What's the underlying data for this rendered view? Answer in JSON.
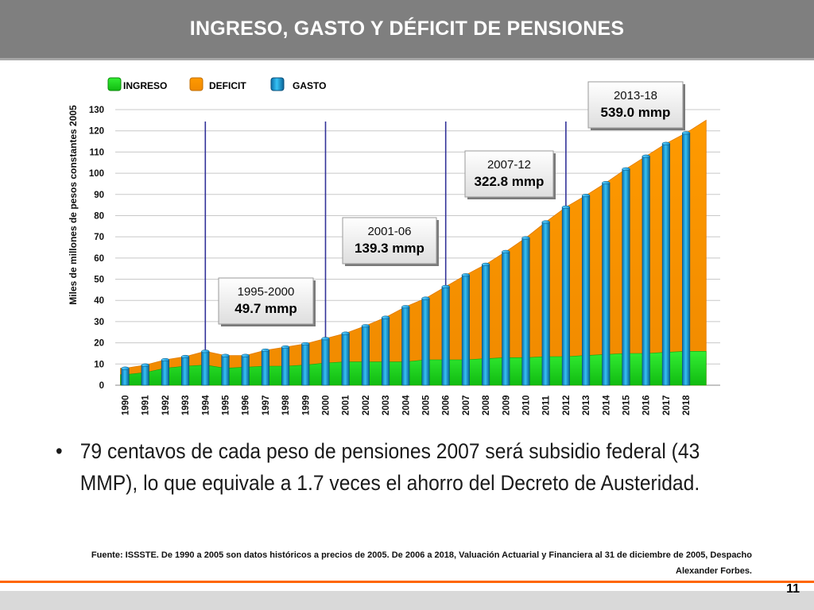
{
  "title": "INGRESO, GASTO Y DÉFICIT DE PENSIONES",
  "bullet": "79 centavos de cada peso de pensiones 2007 será subsidio federal (43 MMP), lo que equivale a 1.7 veces el ahorro del Decreto de Austeridad.",
  "bullet_marker": "•",
  "source": "Fuente: ISSSTE. De 1990 a 2005 son datos históricos a precios de 2005. De 2006 a 2018, Valuación Actuarial y Financiera al 31 de diciembre de 2005, Despacho Alexander Forbes.",
  "page_number": "11",
  "colors": {
    "ingreso": "#22dd22",
    "deficit": "#ff9900",
    "gasto": "#1199dd",
    "divider": "#333399"
  },
  "chart_data": {
    "type": "bar",
    "ylabel": "Miles de millones de pesos constantes 2005",
    "ylim": [
      0,
      130
    ],
    "yticks": [
      0,
      10,
      20,
      30,
      40,
      50,
      60,
      70,
      80,
      90,
      100,
      110,
      120,
      130
    ],
    "categories": [
      "1990",
      "1991",
      "1992",
      "1993",
      "1994",
      "1995",
      "1996",
      "1997",
      "1998",
      "1999",
      "2000",
      "2001",
      "2002",
      "2003",
      "2004",
      "2005",
      "2006",
      "2007",
      "2008",
      "2009",
      "2010",
      "2011",
      "2012",
      "2013",
      "2014",
      "2015",
      "2016",
      "2017",
      "2018"
    ],
    "legend": [
      "INGRESO",
      "DEFICIT",
      "GASTO"
    ],
    "series": [
      {
        "name": "INGRESO",
        "style": "area",
        "values": [
          5,
          6,
          8,
          9,
          9.5,
          8,
          8.5,
          9,
          9,
          9.5,
          10.5,
          11,
          11,
          11,
          11,
          12,
          12,
          12,
          12.5,
          13,
          13,
          13.5,
          13.5,
          14,
          14.5,
          15,
          15,
          15.5,
          16
        ]
      },
      {
        "name": "GASTO",
        "style": "bar",
        "values": [
          8,
          9.5,
          12,
          13.5,
          16,
          14,
          14,
          16.5,
          18,
          19.5,
          22,
          24.5,
          28,
          32,
          37,
          41,
          46.5,
          52,
          57,
          63,
          69.5,
          77,
          84,
          89.5,
          95.5,
          102,
          108,
          114,
          119
        ]
      }
    ],
    "deficit_envelope": [
      8,
      9.5,
      12,
      13.5,
      16,
      14,
      14,
      16.5,
      18,
      19.5,
      22,
      24.5,
      28,
      32,
      37,
      41,
      46.5,
      52,
      57,
      63,
      69.5,
      77,
      84,
      89.5,
      95.5,
      102,
      108,
      114,
      119,
      125
    ],
    "dividers_after": [
      "1994",
      "2000",
      "2006",
      "2012"
    ],
    "annotations": [
      {
        "period": "1995-2000",
        "amount": "49.7 mmp"
      },
      {
        "period": "2001-06",
        "amount": "139.3 mmp"
      },
      {
        "period": "2007-12",
        "amount": "322.8 mmp"
      },
      {
        "period": "2013-18",
        "amount": "539.0 mmp"
      }
    ]
  }
}
